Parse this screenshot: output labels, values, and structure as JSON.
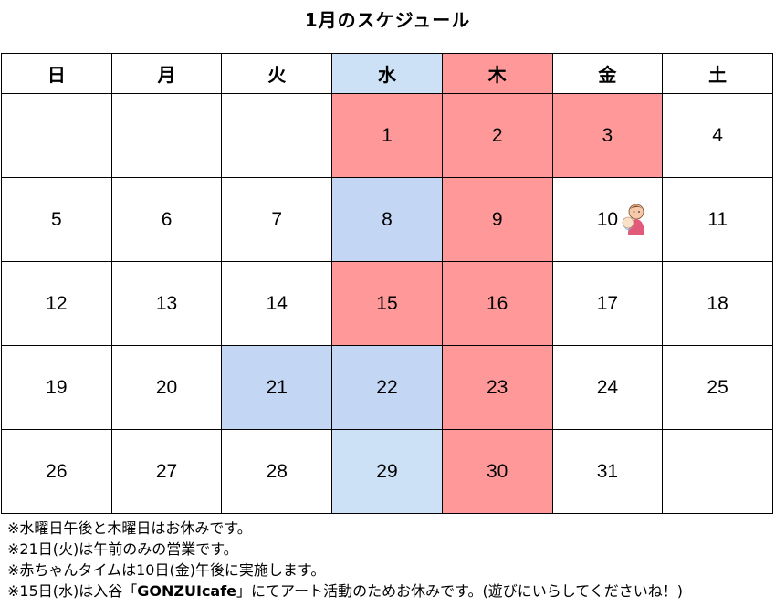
{
  "title": "1月のスケジュール",
  "weekdays": [
    "日",
    "月",
    "火",
    "水",
    "木",
    "金",
    "土"
  ],
  "header_colors": [
    "",
    "",
    "",
    "#cce1f6",
    "#ff9999",
    "",
    ""
  ],
  "weeks": [
    [
      {
        "day": "",
        "bg": ""
      },
      {
        "day": "",
        "bg": ""
      },
      {
        "day": "",
        "bg": ""
      },
      {
        "day": "1",
        "bg": "#ff9999"
      },
      {
        "day": "2",
        "bg": "#ff9999"
      },
      {
        "day": "3",
        "bg": "#ff9999"
      },
      {
        "day": "4",
        "bg": ""
      }
    ],
    [
      {
        "day": "5",
        "bg": ""
      },
      {
        "day": "6",
        "bg": ""
      },
      {
        "day": "7",
        "bg": ""
      },
      {
        "day": "8",
        "bg": "#c3d6f3"
      },
      {
        "day": "9",
        "bg": "#ff9999"
      },
      {
        "day": "10",
        "bg": "",
        "icon": "baby-icon"
      },
      {
        "day": "11",
        "bg": ""
      }
    ],
    [
      {
        "day": "12",
        "bg": ""
      },
      {
        "day": "13",
        "bg": ""
      },
      {
        "day": "14",
        "bg": ""
      },
      {
        "day": "15",
        "bg": "#ff9999"
      },
      {
        "day": "16",
        "bg": "#ff9999"
      },
      {
        "day": "17",
        "bg": ""
      },
      {
        "day": "18",
        "bg": ""
      }
    ],
    [
      {
        "day": "19",
        "bg": ""
      },
      {
        "day": "20",
        "bg": ""
      },
      {
        "day": "21",
        "bg": "#c3d6f3"
      },
      {
        "day": "22",
        "bg": "#c3d6f3"
      },
      {
        "day": "23",
        "bg": "#ff9999"
      },
      {
        "day": "24",
        "bg": ""
      },
      {
        "day": "25",
        "bg": ""
      }
    ],
    [
      {
        "day": "26",
        "bg": ""
      },
      {
        "day": "27",
        "bg": ""
      },
      {
        "day": "28",
        "bg": ""
      },
      {
        "day": "29",
        "bg": "#cce1f6"
      },
      {
        "day": "30",
        "bg": "#ff9999"
      },
      {
        "day": "31",
        "bg": ""
      },
      {
        "day": "",
        "bg": ""
      }
    ]
  ],
  "notes": {
    "line1": "※水曜日午後と木曜日はお休みです。",
    "line2": "※21日(火)は午前のみの営業です。",
    "line3": "※赤ちゃんタイムは10日(金)午後に実施します。",
    "line4_pre": "※15日(水)は入谷「",
    "line4_bold": "GONZUIcafe",
    "line4_post": "」にてアート活動のためお休みです。(遊びにいらしてくださいね！)"
  }
}
